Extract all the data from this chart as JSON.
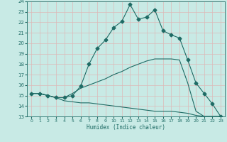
{
  "xlabel": "Humidex (Indice chaleur)",
  "bg_color": "#c8eae5",
  "grid_color": "#b0d8d2",
  "line_color": "#1e6b65",
  "xlim": [
    -0.5,
    23.5
  ],
  "ylim": [
    13,
    24
  ],
  "xticks": [
    0,
    1,
    2,
    3,
    4,
    5,
    6,
    7,
    8,
    9,
    10,
    11,
    12,
    13,
    14,
    15,
    16,
    17,
    18,
    19,
    20,
    21,
    22,
    23
  ],
  "yticks": [
    13,
    14,
    15,
    16,
    17,
    18,
    19,
    20,
    21,
    22,
    23,
    24
  ],
  "series": [
    {
      "x": [
        0,
        1,
        2,
        3,
        4,
        5,
        6,
        7,
        8,
        9,
        10,
        11,
        12,
        13,
        14,
        15,
        16,
        17,
        18,
        19,
        20,
        21,
        22,
        23
      ],
      "y": [
        15.2,
        15.2,
        15.0,
        14.8,
        14.8,
        15.0,
        15.9,
        18.0,
        19.5,
        20.3,
        21.5,
        22.1,
        23.7,
        22.3,
        22.5,
        23.2,
        21.2,
        20.8,
        20.5,
        18.4,
        16.2,
        15.2,
        14.2,
        13.0
      ],
      "marker": "D",
      "markersize": 2.5,
      "linewidth": 0.8
    },
    {
      "x": [
        0,
        1,
        2,
        3,
        4,
        5,
        6,
        7,
        8,
        9,
        10,
        11,
        12,
        13,
        14,
        15,
        16,
        17,
        18,
        19,
        20,
        21,
        22,
        23
      ],
      "y": [
        15.2,
        15.2,
        15.0,
        14.8,
        14.8,
        15.2,
        15.7,
        16.0,
        16.3,
        16.6,
        17.0,
        17.3,
        17.7,
        18.0,
        18.3,
        18.5,
        18.5,
        18.5,
        18.4,
        16.2,
        13.5,
        13.0,
        13.0,
        13.0
      ],
      "marker": null,
      "markersize": 0,
      "linewidth": 0.8
    },
    {
      "x": [
        0,
        1,
        2,
        3,
        4,
        5,
        6,
        7,
        8,
        9,
        10,
        11,
        12,
        13,
        14,
        15,
        16,
        17,
        18,
        19,
        20,
        21,
        22,
        23
      ],
      "y": [
        15.2,
        15.2,
        15.0,
        14.8,
        14.5,
        14.4,
        14.3,
        14.3,
        14.2,
        14.1,
        14.0,
        13.9,
        13.8,
        13.7,
        13.6,
        13.5,
        13.5,
        13.5,
        13.4,
        13.3,
        13.1,
        13.0,
        13.0,
        13.0
      ],
      "marker": null,
      "markersize": 0,
      "linewidth": 0.8
    }
  ]
}
